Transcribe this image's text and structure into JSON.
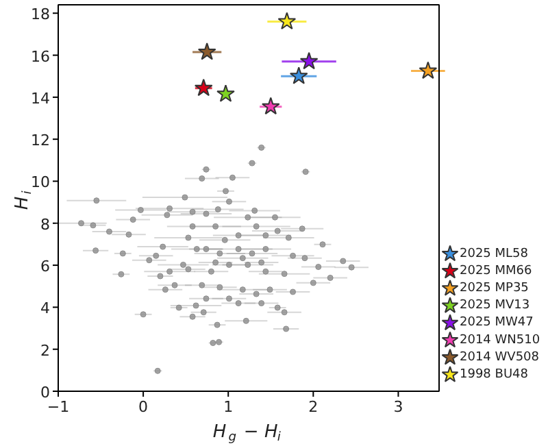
{
  "chart_data": {
    "type": "scatter",
    "xlabel": "H$_{g}$ − H$_{i}$",
    "ylabel": "H$_{i}$",
    "xlim": [
      -1,
      3.48
    ],
    "ylim": [
      0,
      18.4
    ],
    "xticks": [
      -1,
      0,
      1,
      2,
      3
    ],
    "yticks": [
      0,
      2,
      4,
      6,
      8,
      10,
      12,
      14,
      16,
      18
    ],
    "grid": false,
    "legend": "right",
    "series": [
      {
        "color": "#8c8c8c",
        "marker": "circle",
        "x": [
          1.39,
          1.28,
          0.74,
          1.91,
          0.69,
          1.05,
          0.97,
          -0.55,
          0.49,
          -0.73,
          -0.59,
          -0.4,
          -0.56,
          -0.24,
          -0.26,
          0.0,
          0.17,
          0.82,
          0.89,
          0.87,
          1.21,
          1.68,
          0.58,
          0.42,
          0.62,
          0.71,
          -0.03,
          -0.12,
          -0.17,
          0.31,
          0.28,
          0.58,
          0.74,
          0.88,
          1.01,
          1.31,
          1.55,
          1.87,
          2.11,
          2.06,
          2.0,
          1.76,
          1.66,
          1.58,
          1.39,
          1.12,
          0.2,
          0.26,
          0.37,
          0.15,
          0.07,
          0.23,
          0.53,
          0.63,
          0.53,
          0.58,
          0.85,
          1.33,
          1.58,
          1.71,
          1.76,
          1.9,
          0.74,
          0.9,
          1.12,
          1.28,
          1.44,
          1.01,
          1.23,
          1.44,
          1.66,
          0.8,
          0.69,
          0.9,
          1.17,
          1.33,
          1.49,
          1.01,
          0.74,
          0.47,
          0.31,
          1.12,
          0.96,
          1.23,
          1.44,
          0.85,
          1.39,
          1.17,
          2.35,
          2.45,
          2.2
        ],
        "values": [
          11.6,
          10.86,
          10.56,
          10.45,
          10.13,
          10.17,
          9.53,
          9.08,
          9.23,
          8.0,
          7.9,
          7.6,
          6.7,
          6.56,
          5.57,
          3.66,
          0.97,
          2.3,
          2.34,
          3.16,
          3.35,
          2.97,
          3.55,
          3.98,
          4.08,
          3.76,
          8.63,
          8.17,
          7.46,
          8.7,
          8.39,
          8.54,
          8.45,
          8.66,
          9.03,
          8.6,
          8.28,
          7.74,
          6.99,
          5.92,
          5.16,
          4.73,
          3.76,
          3.98,
          4.19,
          4.19,
          5.48,
          4.84,
          5.05,
          6.45,
          6.24,
          6.88,
          5.81,
          6.77,
          7.31,
          7.85,
          7.85,
          7.85,
          7.63,
          7.31,
          6.45,
          6.34,
          6.77,
          6.56,
          6.77,
          6.56,
          6.77,
          6.02,
          6.02,
          5.7,
          5.59,
          5.7,
          5.05,
          4.95,
          4.84,
          4.63,
          4.84,
          4.41,
          4.41,
          6.02,
          5.7,
          7.42,
          7.2,
          8.28,
          7.42,
          6.13,
          6.13,
          6.34,
          6.2,
          5.9,
          5.4
        ],
        "xerrors": [
          0.05,
          0.05,
          0.05,
          0.05,
          0.2,
          0.2,
          0.1,
          0.35,
          0.5,
          0.3,
          0.15,
          0.2,
          0.15,
          0.1,
          0.1,
          0.1,
          0.05,
          0.05,
          0.05,
          0.1,
          0.25,
          0.15,
          0.15,
          0.1,
          0.3,
          0.15,
          0.3,
          0.2,
          0.2,
          0.4,
          0.3,
          0.3,
          0.3,
          0.3,
          0.2,
          0.3,
          0.3,
          0.25,
          0.1,
          0.2,
          0.2,
          0.2,
          0.2,
          0.1,
          0.2,
          0.2,
          0.15,
          0.2,
          0.2,
          0.2,
          0.2,
          0.3,
          0.2,
          0.3,
          0.4,
          0.3,
          0.3,
          0.4,
          0.3,
          0.3,
          0.25,
          0.2,
          0.2,
          0.3,
          0.4,
          0.3,
          0.3,
          0.2,
          0.3,
          0.2,
          0.3,
          0.2,
          0.2,
          0.2,
          0.3,
          0.2,
          0.2,
          0.2,
          0.2,
          0.3,
          0.3,
          0.3,
          0.3,
          0.4,
          0.3,
          0.2,
          0.2,
          0.3,
          0.2,
          0.2,
          0.2
        ]
      },
      {
        "name": "2025 ML58",
        "color": "#3a8fde",
        "marker": "star",
        "x": [
          1.83
        ],
        "values": [
          15.0
        ],
        "xerrors": [
          0.21
        ]
      },
      {
        "name": "2025 MM66",
        "color": "#d80018",
        "marker": "star",
        "x": [
          0.71
        ],
        "values": [
          14.43
        ],
        "xerrors": [
          0.1
        ]
      },
      {
        "name": "2025 MP35",
        "color": "#f5a020",
        "marker": "star",
        "x": [
          3.35
        ],
        "values": [
          15.25
        ],
        "xerrors": [
          0.2
        ]
      },
      {
        "name": "2025 MV13",
        "color": "#7ed321",
        "marker": "star",
        "x": [
          0.97
        ],
        "values": [
          14.15
        ],
        "xerrors": [
          0.05
        ]
      },
      {
        "name": "2025 MW47",
        "color": "#8a10e8",
        "marker": "star",
        "x": [
          1.95
        ],
        "values": [
          15.7
        ],
        "xerrors": [
          0.32
        ]
      },
      {
        "name": "2014 WN510",
        "color": "#f03cb0",
        "marker": "star",
        "x": [
          1.5
        ],
        "values": [
          13.55
        ],
        "xerrors": [
          0.13
        ]
      },
      {
        "name": "2014 WV508",
        "color": "#8b5a2b",
        "marker": "star",
        "x": [
          0.75
        ],
        "values": [
          16.15
        ],
        "xerrors": [
          0.17
        ]
      },
      {
        "name": "1998 BU48",
        "color": "#f8e71c",
        "marker": "star",
        "x": [
          1.69
        ],
        "values": [
          17.6
        ],
        "xerrors": [
          0.23
        ]
      }
    ]
  }
}
